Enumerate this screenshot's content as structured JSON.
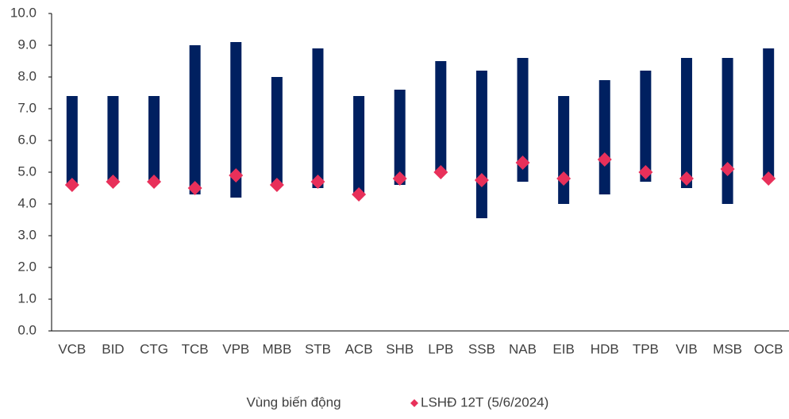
{
  "chart_data": {
    "type": "range_bar",
    "categories": [
      "VCB",
      "BID",
      "CTG",
      "TCB",
      "VPB",
      "MBB",
      "STB",
      "ACB",
      "SHB",
      "LPB",
      "SSB",
      "NAB",
      "EIB",
      "HDB",
      "TPB",
      "VIB",
      "MSB",
      "OCB"
    ],
    "series": [
      {
        "name": "Vùng biến động",
        "color": "#002060",
        "low": [
          4.6,
          4.7,
          4.7,
          4.3,
          4.2,
          4.6,
          4.5,
          4.3,
          4.6,
          5.0,
          3.55,
          4.7,
          4.0,
          4.3,
          4.7,
          4.5,
          4.0,
          4.8
        ],
        "high": [
          7.4,
          7.4,
          7.4,
          9.0,
          9.1,
          8.0,
          8.9,
          7.4,
          7.6,
          8.5,
          8.2,
          8.6,
          7.4,
          7.9,
          8.2,
          8.6,
          8.6,
          8.9
        ]
      },
      {
        "name": "LSHĐ 12T (5/6/2024)",
        "color": "#e8305a",
        "values": [
          4.6,
          4.7,
          4.7,
          4.5,
          4.9,
          4.6,
          4.7,
          4.3,
          4.8,
          5.0,
          4.75,
          5.3,
          4.8,
          5.4,
          5.0,
          4.8,
          5.1,
          4.8
        ]
      }
    ],
    "ylim": [
      0,
      10
    ],
    "yticks": [
      {
        "value": 0,
        "label": "0.0"
      },
      {
        "value": 1,
        "label": "1.0"
      },
      {
        "value": 2,
        "label": "2.0"
      },
      {
        "value": 3,
        "label": "3.0"
      },
      {
        "value": 4,
        "label": "4.0"
      },
      {
        "value": 5,
        "label": "5.0"
      },
      {
        "value": 6,
        "label": "6.0"
      },
      {
        "value": 7,
        "label": "7.0"
      },
      {
        "value": 8,
        "label": "8.0"
      },
      {
        "value": 9,
        "label": "9.0"
      },
      {
        "value": 10,
        "label": "10.0"
      }
    ],
    "grid": false
  }
}
